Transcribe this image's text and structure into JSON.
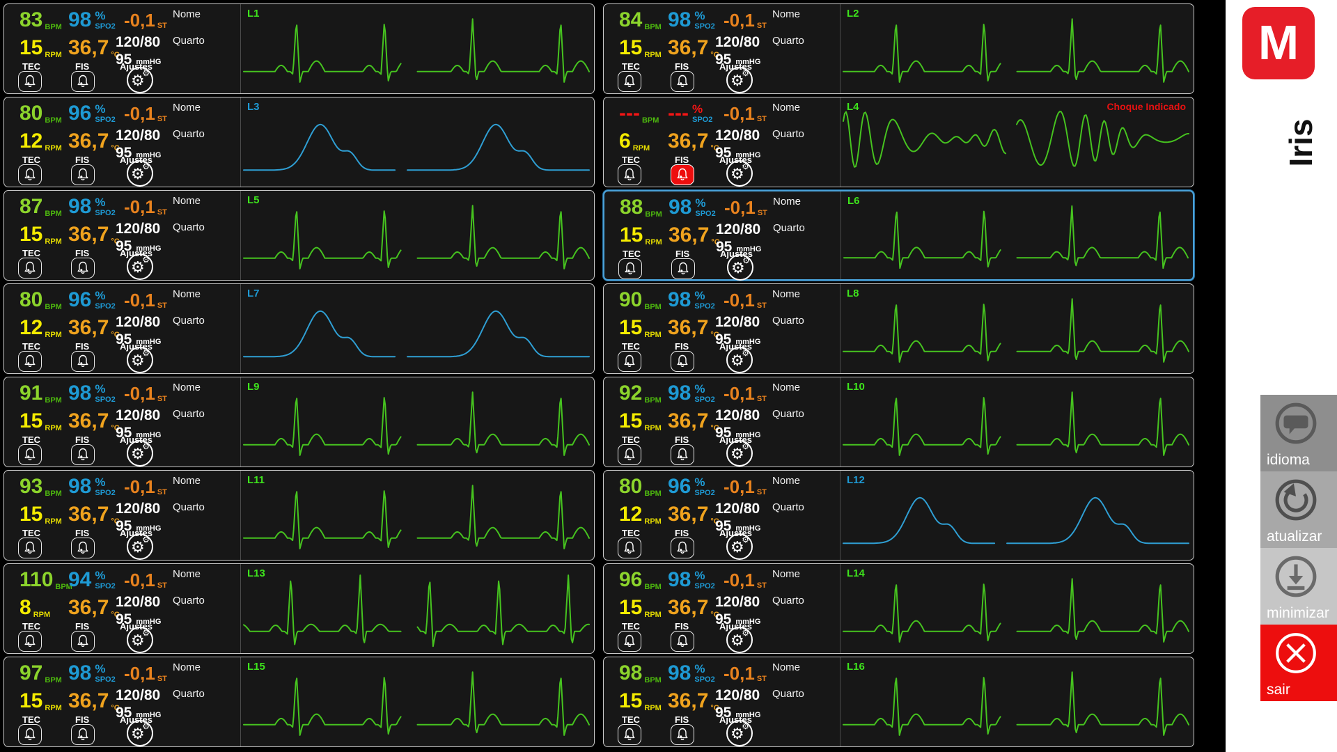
{
  "labels": {
    "bpm": "BPM",
    "spo2": "SPO2",
    "percent": "%",
    "st": "ST",
    "rpm": "RPM",
    "celsius": "°C",
    "mmhg": "mmHG",
    "nome": "Nome",
    "quarto": "Quarto",
    "tec": "TEC",
    "fis": "FIS",
    "ajustes": "Ajustes"
  },
  "colors": {
    "hr_green": "#8cd42c",
    "spo2_blue": "#1e9ad4",
    "st_orange": "#e8821e",
    "rpm_yellow": "#f5ec00",
    "temp_orange": "#f0a31e",
    "alarm_red": "#ed0e0e",
    "flatline_red": "#f51515",
    "wave_green": "#46c31f",
    "wave_blue": "#2f9fd4",
    "selected_border": "#4aa2d9",
    "tile_bg": "#171717",
    "sidebar_bg": "#ffffff",
    "brand_red": "#e61e28"
  },
  "tiles": [
    {
      "id": "L1",
      "hr": "83",
      "spo2": "98",
      "st": "-0,1",
      "rpm": "15",
      "temp": "36,7",
      "bp": "120/80",
      "map": "95",
      "wave": "ecg",
      "selected": false,
      "fis_alarm": false,
      "alert": ""
    },
    {
      "id": "L2",
      "hr": "84",
      "spo2": "98",
      "st": "-0,1",
      "rpm": "15",
      "temp": "36,7",
      "bp": "120/80",
      "map": "95",
      "wave": "ecg",
      "selected": false,
      "fis_alarm": false,
      "alert": ""
    },
    {
      "id": "L3",
      "hr": "80",
      "spo2": "96",
      "st": "-0,1",
      "rpm": "12",
      "temp": "36,7",
      "bp": "120/80",
      "map": "95",
      "wave": "resp",
      "selected": false,
      "fis_alarm": false,
      "alert": ""
    },
    {
      "id": "L4",
      "hr": "---",
      "spo2": "---",
      "st": "-0,1",
      "rpm": "6",
      "temp": "36,7",
      "bp": "120/80",
      "map": "95",
      "wave": "vfib",
      "selected": false,
      "fis_alarm": true,
      "alert": "Choque Indicado"
    },
    {
      "id": "L5",
      "hr": "87",
      "spo2": "98",
      "st": "-0,1",
      "rpm": "15",
      "temp": "36,7",
      "bp": "120/80",
      "map": "95",
      "wave": "ecg",
      "selected": false,
      "fis_alarm": false,
      "alert": ""
    },
    {
      "id": "L6",
      "hr": "88",
      "spo2": "98",
      "st": "-0,1",
      "rpm": "15",
      "temp": "36,7",
      "bp": "120/80",
      "map": "95",
      "wave": "ecg",
      "selected": true,
      "fis_alarm": false,
      "alert": ""
    },
    {
      "id": "L7",
      "hr": "80",
      "spo2": "96",
      "st": "-0,1",
      "rpm": "12",
      "temp": "36,7",
      "bp": "120/80",
      "map": "95",
      "wave": "resp",
      "selected": false,
      "fis_alarm": false,
      "alert": ""
    },
    {
      "id": "L8",
      "hr": "90",
      "spo2": "98",
      "st": "-0,1",
      "rpm": "15",
      "temp": "36,7",
      "bp": "120/80",
      "map": "95",
      "wave": "ecg",
      "selected": false,
      "fis_alarm": false,
      "alert": ""
    },
    {
      "id": "L9",
      "hr": "91",
      "spo2": "98",
      "st": "-0,1",
      "rpm": "15",
      "temp": "36,7",
      "bp": "120/80",
      "map": "95",
      "wave": "ecg",
      "selected": false,
      "fis_alarm": false,
      "alert": ""
    },
    {
      "id": "L10",
      "hr": "92",
      "spo2": "98",
      "st": "-0,1",
      "rpm": "15",
      "temp": "36,7",
      "bp": "120/80",
      "map": "95",
      "wave": "ecg",
      "selected": false,
      "fis_alarm": false,
      "alert": ""
    },
    {
      "id": "L11",
      "hr": "93",
      "spo2": "98",
      "st": "-0,1",
      "rpm": "15",
      "temp": "36,7",
      "bp": "120/80",
      "map": "95",
      "wave": "ecg",
      "selected": false,
      "fis_alarm": false,
      "alert": ""
    },
    {
      "id": "L12",
      "hr": "80",
      "spo2": "96",
      "st": "-0,1",
      "rpm": "12",
      "temp": "36,7",
      "bp": "120/80",
      "map": "95",
      "wave": "resp",
      "selected": false,
      "fis_alarm": false,
      "alert": ""
    },
    {
      "id": "L13",
      "hr": "110",
      "spo2": "94",
      "st": "-0,1",
      "rpm": "8",
      "temp": "36,7",
      "bp": "120/80",
      "map": "95",
      "wave": "ecg-fast",
      "selected": false,
      "fis_alarm": false,
      "alert": ""
    },
    {
      "id": "L14",
      "hr": "96",
      "spo2": "98",
      "st": "-0,1",
      "rpm": "15",
      "temp": "36,7",
      "bp": "120/80",
      "map": "95",
      "wave": "ecg",
      "selected": false,
      "fis_alarm": false,
      "alert": ""
    },
    {
      "id": "L15",
      "hr": "97",
      "spo2": "98",
      "st": "-0,1",
      "rpm": "15",
      "temp": "36,7",
      "bp": "120/80",
      "map": "95",
      "wave": "ecg",
      "selected": false,
      "fis_alarm": false,
      "alert": ""
    },
    {
      "id": "L16",
      "hr": "98",
      "spo2": "98",
      "st": "-0,1",
      "rpm": "15",
      "temp": "36,7",
      "bp": "120/80",
      "map": "95",
      "wave": "ecg",
      "selected": false,
      "fis_alarm": false,
      "alert": ""
    }
  ],
  "sidebar": {
    "logo_letter": "M",
    "brand": "Iris",
    "buttons": [
      {
        "label": "idioma",
        "icon": "speech-bubble"
      },
      {
        "label": "atualizar",
        "icon": "refresh"
      },
      {
        "label": "minimizar",
        "icon": "download-arrow"
      },
      {
        "label": "sair",
        "icon": "close-x"
      }
    ]
  }
}
